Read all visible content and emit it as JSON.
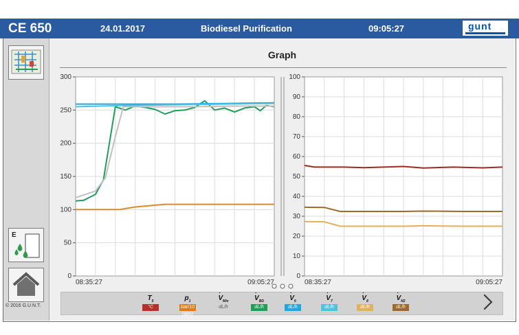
{
  "header": {
    "model": "CE 650",
    "date": "24.01.2017",
    "title": "Biodiesel Purification",
    "time": "09:05:27",
    "logo_text": "gunt"
  },
  "page": {
    "title": "Graph"
  },
  "sidebar": {
    "icons": [
      "process-diagram-icon",
      "level-drops-icon",
      "home-icon"
    ],
    "copyright": "© 2016 G.U.N.T."
  },
  "chart_data": [
    {
      "type": "line",
      "title": "",
      "x": [
        "08:35:27",
        "09:05:27"
      ],
      "ylim": [
        0,
        300
      ],
      "yticks": [
        0,
        50,
        100,
        150,
        200,
        250,
        300
      ],
      "grid": true,
      "series": [
        {
          "name": "p1",
          "color": "#d98a2b",
          "points": [
            [
              0,
              100
            ],
            [
              0.12,
              100
            ],
            [
              0.22,
              100
            ],
            [
              0.3,
              104
            ],
            [
              0.45,
              108
            ],
            [
              0.6,
              108
            ],
            [
              0.8,
              108
            ],
            [
              1,
              108
            ]
          ]
        },
        {
          "name": "V̇BD",
          "color": "#1f9e5a",
          "points": [
            [
              0,
              113
            ],
            [
              0.04,
              114
            ],
            [
              0.1,
              123
            ],
            [
              0.14,
              145
            ],
            [
              0.17,
              200
            ],
            [
              0.2,
              255
            ],
            [
              0.25,
              250
            ],
            [
              0.3,
              256
            ],
            [
              0.35,
              254
            ],
            [
              0.4,
              251
            ],
            [
              0.45,
              244
            ],
            [
              0.5,
              249
            ],
            [
              0.55,
              250
            ],
            [
              0.6,
              254
            ],
            [
              0.65,
              264
            ],
            [
              0.7,
              250
            ],
            [
              0.75,
              253
            ],
            [
              0.8,
              247
            ],
            [
              0.85,
              253
            ],
            [
              0.9,
              255
            ],
            [
              0.93,
              249
            ],
            [
              0.96,
              257
            ],
            [
              1,
              255
            ]
          ]
        },
        {
          "name": "V̇Mix",
          "color": "#c0c0c0",
          "points": [
            [
              0,
              118
            ],
            [
              0.1,
              128
            ],
            [
              0.15,
              148
            ],
            [
              0.2,
              210
            ],
            [
              0.24,
              255
            ],
            [
              0.4,
              255
            ],
            [
              0.6,
              255
            ],
            [
              0.8,
              256
            ],
            [
              1,
              256
            ]
          ]
        },
        {
          "name": "V̇6",
          "color": "#22a7e0",
          "points": [
            [
              0,
              259
            ],
            [
              0.25,
              259
            ],
            [
              0.5,
              259
            ],
            [
              0.75,
              260
            ],
            [
              1,
              261
            ]
          ]
        },
        {
          "name": "V̇7",
          "color": "#4ec3e0",
          "points": [
            [
              0,
              255
            ],
            [
              0.25,
              257
            ],
            [
              0.5,
              258
            ],
            [
              0.75,
              259
            ],
            [
              1,
              260
            ]
          ]
        }
      ]
    },
    {
      "type": "line",
      "title": "",
      "x": [
        "08:35:27",
        "09:05:27"
      ],
      "ylim": [
        0,
        100
      ],
      "yticks": [
        0,
        10,
        20,
        30,
        40,
        50,
        60,
        70,
        80,
        90,
        100
      ],
      "grid": true,
      "series": [
        {
          "name": "T5",
          "color": "#9e2a22",
          "points": [
            [
              0,
              55.5
            ],
            [
              0.05,
              54.7
            ],
            [
              0.2,
              54.7
            ],
            [
              0.3,
              54.4
            ],
            [
              0.5,
              55
            ],
            [
              0.6,
              54.2
            ],
            [
              0.75,
              54.7
            ],
            [
              0.9,
              54.3
            ],
            [
              1,
              54.7
            ]
          ]
        },
        {
          "name": "V̇N2",
          "color": "#9e6a2c",
          "points": [
            [
              0,
              34.5
            ],
            [
              0.1,
              34.4
            ],
            [
              0.18,
              32.4
            ],
            [
              0.35,
              32.4
            ],
            [
              0.5,
              32.4
            ],
            [
              0.6,
              32.6
            ],
            [
              0.8,
              32.4
            ],
            [
              1,
              32.4
            ]
          ]
        },
        {
          "name": "V̇8",
          "color": "#e1b25a",
          "points": [
            [
              0,
              27.3
            ],
            [
              0.1,
              27.2
            ],
            [
              0.18,
              25
            ],
            [
              0.35,
              25
            ],
            [
              0.5,
              25
            ],
            [
              0.6,
              25.2
            ],
            [
              0.8,
              25
            ],
            [
              1,
              25
            ]
          ]
        }
      ]
    }
  ],
  "legend": [
    {
      "symbol": "T",
      "sub": "5",
      "unit": "°C",
      "color": "#b7312b",
      "dot": false
    },
    {
      "symbol": "p",
      "sub": "1",
      "unit": "bar/10 (abs)",
      "color": "#e07a1a",
      "dot": false
    },
    {
      "symbol": "V",
      "sub": "Mix",
      "unit": "dL/h",
      "color": "#d2d2d2",
      "dot": true
    },
    {
      "symbol": "V",
      "sub": "BD",
      "unit": "dL/h",
      "color": "#1f9e5a",
      "dot": true
    },
    {
      "symbol": "V",
      "sub": "6",
      "unit": "dL/h",
      "color": "#22a7e0",
      "dot": true
    },
    {
      "symbol": "V",
      "sub": "7",
      "unit": "dL/h",
      "color": "#4ec3e0",
      "dot": true
    },
    {
      "symbol": "V",
      "sub": "8",
      "unit": "dL/h",
      "color": "#e1b25a",
      "dot": true
    },
    {
      "symbol": "V",
      "sub": "N2",
      "unit": "dL/h",
      "color": "#9e6a2c",
      "dot": true
    }
  ]
}
